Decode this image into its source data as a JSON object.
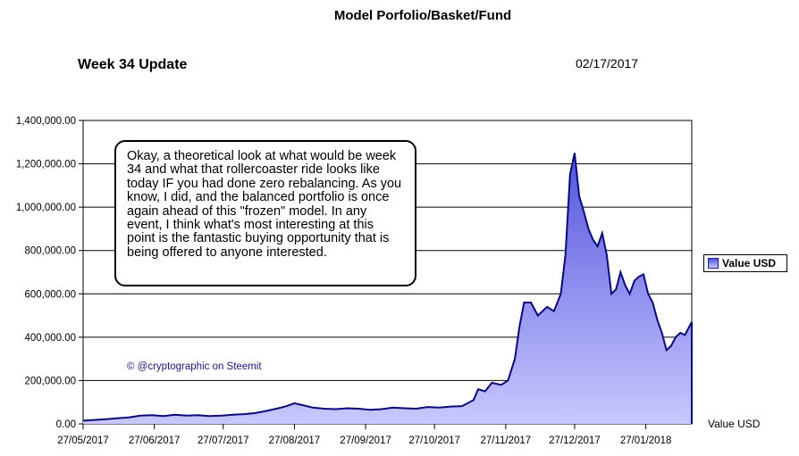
{
  "chart_data": {
    "type": "area",
    "title": "Model Porfolio/Basket/Fund",
    "subtitle": "Week 34 Update",
    "date": "02/17/2017",
    "xlabel": "Value USD",
    "ylabel": "",
    "ylim": [
      0,
      1400000
    ],
    "y_ticks": [
      "0.00",
      "200,000.00",
      "400,000.00",
      "600,000.00",
      "800,000.00",
      "1,000,000.00",
      "1,200,000.00",
      "1,400,000.00"
    ],
    "x_ticks": [
      "27/05/2017",
      "27/06/2017",
      "27/07/2017",
      "27/08/2017",
      "27/09/2017",
      "27/10/2017",
      "27/11/2017",
      "27/12/2017",
      "27/01/2018"
    ],
    "x_range_days": [
      0,
      265
    ],
    "grid": "horizontal",
    "legend_position": "right",
    "series": [
      {
        "name": "Value USD",
        "x_days": [
          0,
          10,
          20,
          25,
          30,
          35,
          40,
          45,
          50,
          55,
          60,
          65,
          70,
          75,
          80,
          85,
          88,
          92,
          95,
          100,
          105,
          110,
          115,
          120,
          125,
          130,
          135,
          140,
          145,
          150,
          155,
          160,
          165,
          170,
          172,
          175,
          178,
          182,
          185,
          188,
          190,
          192,
          195,
          198,
          200,
          202,
          205,
          208,
          210,
          212,
          214,
          216,
          218,
          220,
          222,
          224,
          226,
          228,
          230,
          232,
          234,
          236,
          238,
          240,
          242,
          244,
          246,
          248,
          250,
          252,
          254,
          256,
          258,
          260,
          262,
          265
        ],
        "values": [
          15000,
          22000,
          30000,
          38000,
          40000,
          36000,
          42000,
          38000,
          40000,
          36000,
          38000,
          42000,
          45000,
          50000,
          60000,
          72000,
          80000,
          95000,
          88000,
          75000,
          70000,
          68000,
          72000,
          70000,
          65000,
          68000,
          75000,
          72000,
          70000,
          78000,
          75000,
          80000,
          82000,
          110000,
          160000,
          150000,
          190000,
          180000,
          200000,
          300000,
          450000,
          560000,
          560000,
          500000,
          520000,
          540000,
          520000,
          600000,
          780000,
          1150000,
          1250000,
          1050000,
          980000,
          900000,
          850000,
          820000,
          880000,
          780000,
          600000,
          620000,
          700000,
          640000,
          600000,
          660000,
          680000,
          690000,
          600000,
          560000,
          480000,
          420000,
          340000,
          360000,
          400000,
          420000,
          410000,
          470000
        ]
      }
    ]
  },
  "annotation_text": "Okay, a theoretical look at what would be week 34 and what that rollercoaster ride looks like today IF you had done zero rebalancing. As you know, I did, and the balanced portfolio is once again ahead of this \"frozen\" model. In any event, I think what's most interesting at this point is the fantastic buying opportunity that is being offered to anyone interested.",
  "credit_text": "© @cryptographic on Steemit",
  "colors": {
    "area_top": "#5555dd",
    "area_bottom": "#c8c8ff",
    "line": "#0a0a7a",
    "plot_bg": "#ffffff"
  }
}
